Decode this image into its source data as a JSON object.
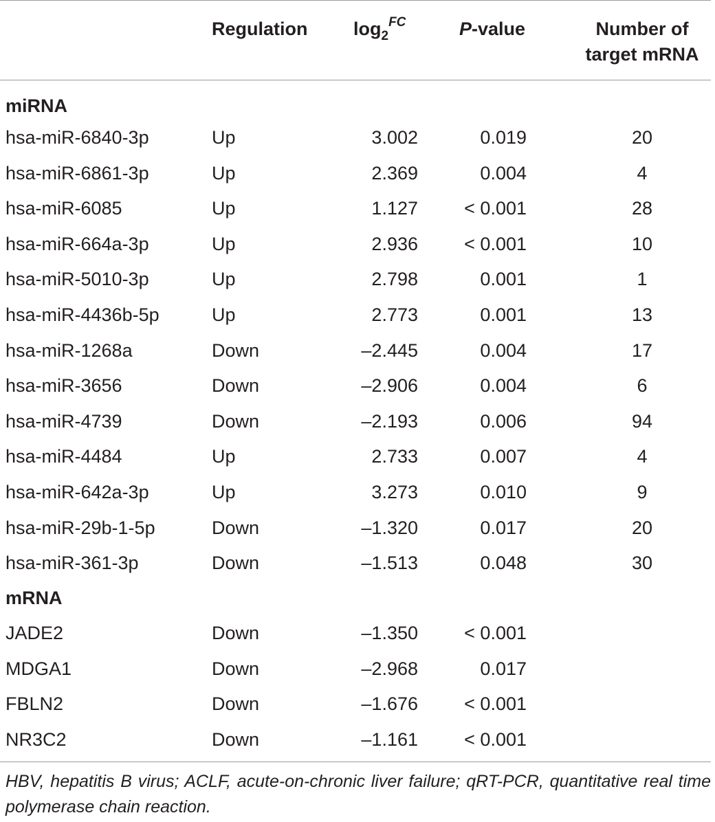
{
  "header": {
    "regulation": "Regulation",
    "log_main": "log",
    "log_sub": "2",
    "log_sup": "FC",
    "p_italic": "P",
    "p_rest": "-value",
    "num_line1": "Number of",
    "num_line2": "target mRNA"
  },
  "sections": {
    "mirna": "miRNA",
    "mrna": "mRNA"
  },
  "mirna_rows": [
    {
      "name": "hsa-miR-6840-3p",
      "regulation": "Up",
      "log2fc": "3.002",
      "p": "0.019",
      "targets": "20"
    },
    {
      "name": "hsa-miR-6861-3p",
      "regulation": "Up",
      "log2fc": "2.369",
      "p": "0.004",
      "targets": "4"
    },
    {
      "name": "hsa-miR-6085",
      "regulation": "Up",
      "log2fc": "1.127",
      "p": "< 0.001",
      "targets": "28"
    },
    {
      "name": "hsa-miR-664a-3p",
      "regulation": "Up",
      "log2fc": "2.936",
      "p": "< 0.001",
      "targets": "10"
    },
    {
      "name": "hsa-miR-5010-3p",
      "regulation": "Up",
      "log2fc": "2.798",
      "p": "0.001",
      "targets": "1"
    },
    {
      "name": "hsa-miR-4436b-5p",
      "regulation": "Up",
      "log2fc": "2.773",
      "p": "0.001",
      "targets": "13"
    },
    {
      "name": "hsa-miR-1268a",
      "regulation": "Down",
      "log2fc": "–2.445",
      "p": "0.004",
      "targets": "17"
    },
    {
      "name": "hsa-miR-3656",
      "regulation": "Down",
      "log2fc": "–2.906",
      "p": "0.004",
      "targets": "6"
    },
    {
      "name": "hsa-miR-4739",
      "regulation": "Down",
      "log2fc": "–2.193",
      "p": "0.006",
      "targets": "94"
    },
    {
      "name": "hsa-miR-4484",
      "regulation": "Up",
      "log2fc": "2.733",
      "p": "0.007",
      "targets": "4"
    },
    {
      "name": "hsa-miR-642a-3p",
      "regulation": "Up",
      "log2fc": "3.273",
      "p": "0.010",
      "targets": "9"
    },
    {
      "name": "hsa-miR-29b-1-5p",
      "regulation": "Down",
      "log2fc": "–1.320",
      "p": "0.017",
      "targets": "20"
    },
    {
      "name": "hsa-miR-361-3p",
      "regulation": "Down",
      "log2fc": "–1.513",
      "p": "0.048",
      "targets": "30"
    }
  ],
  "mrna_rows": [
    {
      "name": "JADE2",
      "regulation": "Down",
      "log2fc": "–1.350",
      "p": "< 0.001",
      "targets": ""
    },
    {
      "name": "MDGA1",
      "regulation": "Down",
      "log2fc": "–2.968",
      "p": "0.017",
      "targets": ""
    },
    {
      "name": "FBLN2",
      "regulation": "Down",
      "log2fc": "–1.676",
      "p": "< 0.001",
      "targets": ""
    },
    {
      "name": "NR3C2",
      "regulation": "Down",
      "log2fc": "–1.161",
      "p": "< 0.001",
      "targets": ""
    }
  ],
  "footnote": "HBV, hepatitis B virus; ACLF, acute-on-chronic liver failure; qRT-PCR, quantitative real time polymerase chain reaction."
}
